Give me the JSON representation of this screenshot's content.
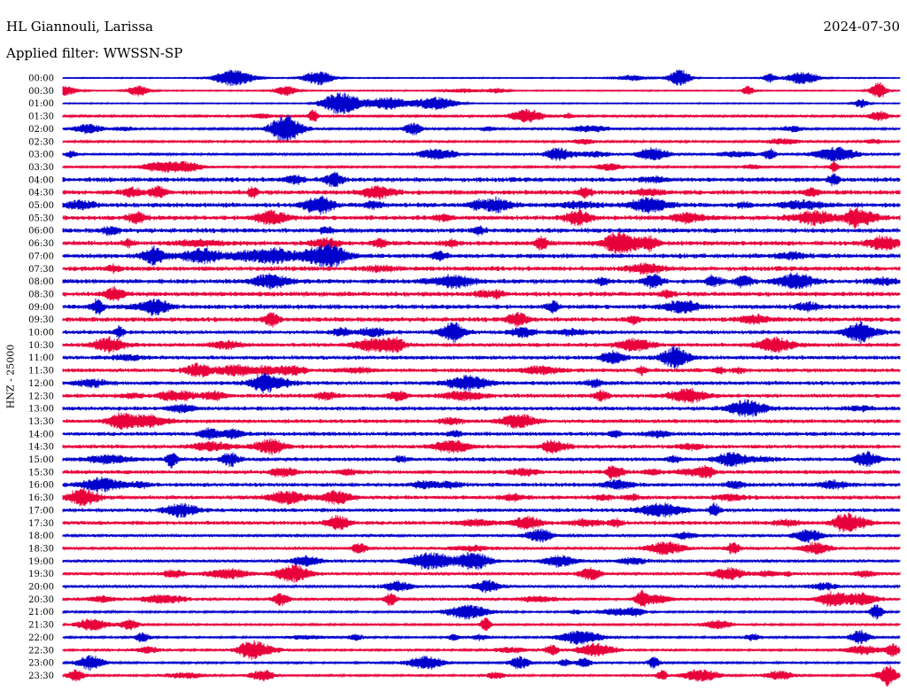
{
  "header": {
    "station": "HL Giannouli, Larissa",
    "date": "2024-07-30",
    "filter": "Applied filter: WWSSN-SP"
  },
  "chart_data": {
    "type": "line",
    "title": "HL Giannouli, Larissa",
    "ylabel": "HNZ - 25000",
    "rows": [
      "00:00",
      "00:30",
      "01:00",
      "01:30",
      "02:00",
      "02:30",
      "03:00",
      "03:30",
      "04:00",
      "04:30",
      "05:00",
      "05:30",
      "06:00",
      "06:30",
      "07:00",
      "07:30",
      "08:00",
      "08:30",
      "09:00",
      "09:30",
      "10:00",
      "10:30",
      "11:00",
      "11:30",
      "12:00",
      "12:30",
      "13:00",
      "13:30",
      "14:00",
      "14:30",
      "15:00",
      "15:30",
      "16:00",
      "16:30",
      "17:00",
      "17:30",
      "18:00",
      "18:30",
      "19:00",
      "19:30",
      "20:00",
      "20:30",
      "21:00",
      "21:30",
      "22:00",
      "22:30",
      "23:00",
      "23:30"
    ],
    "row_colors": [
      "#0000cc",
      "#e8003a"
    ],
    "grid": false
  }
}
